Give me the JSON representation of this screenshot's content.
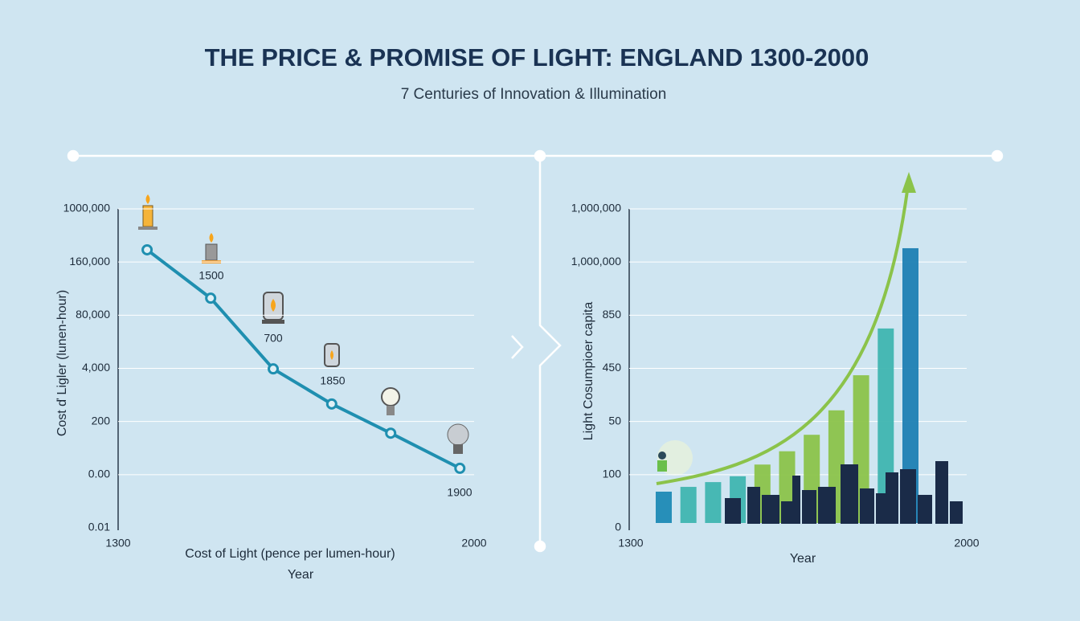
{
  "header": {
    "title": "THE PRICE & PROMISE OF LIGHT: ENGLAND 1300-2000",
    "subtitle": "7 Centuries of Innovation & Illumination"
  },
  "chart_data": [
    {
      "type": "line",
      "x_label": "Cost of Light (pence per lumen-hour)",
      "x_label_2": "Year",
      "y_label": "Cost ď Ligler (lunen-hour)",
      "xlim": [
        1300,
        2000
      ],
      "xticks": [
        1300,
        2000
      ],
      "ylevels": [
        "0.01",
        "0.00",
        "200",
        "4,000",
        "80,000",
        "160,000",
        "1000,000"
      ],
      "ylim": [
        0,
        6
      ],
      "x": [
        1357,
        1482,
        1605,
        1720,
        1836,
        1972
      ],
      "values": [
        5.23,
        4.32,
        2.99,
        2.33,
        1.78,
        1.12
      ],
      "color": "#1f8fb0",
      "grid": true,
      "annotations": [
        "1500",
        "700",
        "1850",
        "1900"
      ]
    },
    {
      "type": "bar",
      "x_label": "Year",
      "y_label": "Light Cosumpioer capita",
      "xticks_text": [
        "1300",
        "2000"
      ],
      "ylevels": [
        "0",
        "100",
        "50",
        "450",
        "850",
        "1,000,000",
        "1,000,000"
      ],
      "ylim": [
        0,
        6
      ],
      "categories": [
        null,
        null,
        null,
        null,
        null,
        null,
        null,
        null,
        null,
        null,
        null
      ],
      "values": [
        0.68,
        0.77,
        0.86,
        0.97,
        1.19,
        1.44,
        1.75,
        2.21,
        2.87,
        3.75,
        5.26
      ],
      "colors": [
        "#1d8ab5",
        "#3fb5b0",
        "#3fb5b0",
        "#3fb5b0",
        "#8bc34a",
        "#8bc34a",
        "#8bc34a",
        "#8bc34a",
        "#8bc34a",
        "#3fb5b0",
        "#1d80b3"
      ],
      "grid": true
    }
  ]
}
